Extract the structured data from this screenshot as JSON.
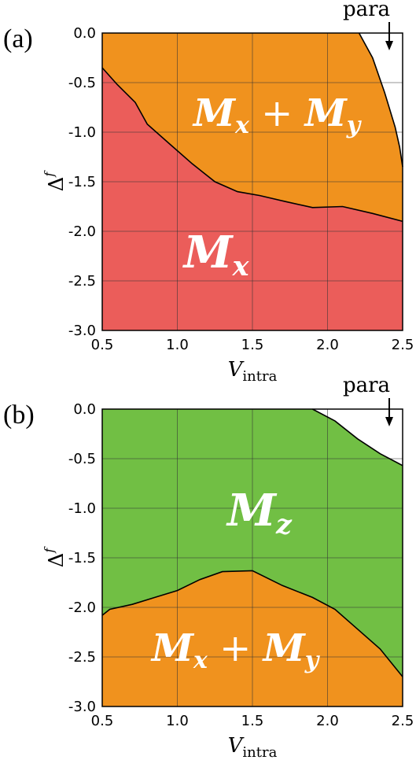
{
  "chart_data": [
    {
      "type": "area",
      "panel_label": "(a)",
      "xlabel": {
        "main": "V",
        "sub": "intra"
      },
      "ylabel": {
        "main": "Δ",
        "sup": "f"
      },
      "xlim": [
        0.5,
        2.5
      ],
      "ylim": [
        -3.0,
        0.0
      ],
      "xticks": [
        "0.5",
        "1.0",
        "1.5",
        "2.0",
        "2.5"
      ],
      "xtick_values": [
        0.5,
        1.0,
        1.5,
        2.0,
        2.5
      ],
      "yticks": [
        "0.0",
        "-0.5",
        "-1.0",
        "-1.5",
        "-2.0",
        "-2.5",
        "-3.0"
      ],
      "ytick_values": [
        0.0,
        -0.5,
        -1.0,
        -1.5,
        -2.0,
        -2.5,
        -3.0
      ],
      "grid": true,
      "annotation": "para",
      "colors": {
        "Mx": "#eb5d5a",
        "MxMy": "#f0921e",
        "para": "#ffffff"
      },
      "regions": [
        {
          "name": "Mx",
          "label": "M",
          "sub": "x",
          "color": "#eb5d5a"
        },
        {
          "name": "MxMy",
          "label": "M",
          "sub": "x",
          "label2": "M",
          "sub2": "y",
          "color": "#f0921e"
        },
        {
          "name": "para",
          "label": "",
          "color": "#ffffff"
        }
      ],
      "boundaries": {
        "Mx_upper": {
          "x": [
            0.5,
            0.6,
            0.72,
            0.8,
            0.95,
            1.1,
            1.25,
            1.4,
            1.55,
            1.72,
            1.9,
            2.1,
            2.3,
            2.5
          ],
          "y": [
            -0.35,
            -0.52,
            -0.7,
            -0.92,
            -1.12,
            -1.32,
            -1.5,
            -1.6,
            -1.64,
            -1.7,
            -1.76,
            -1.75,
            -1.82,
            -1.9
          ]
        },
        "para_lower": {
          "x": [
            2.21,
            2.3,
            2.38,
            2.45,
            2.48,
            2.5
          ],
          "y": [
            0.0,
            -0.25,
            -0.6,
            -0.95,
            -1.15,
            -1.35
          ]
        }
      }
    },
    {
      "type": "area",
      "panel_label": "(b)",
      "xlabel": {
        "main": "V",
        "sub": "intra"
      },
      "ylabel": {
        "main": "Δ",
        "sup": "f"
      },
      "xlim": [
        0.5,
        2.5
      ],
      "ylim": [
        -3.0,
        0.0
      ],
      "xticks": [
        "0.5",
        "1.0",
        "1.5",
        "2.0",
        "2.5"
      ],
      "xtick_values": [
        0.5,
        1.0,
        1.5,
        2.0,
        2.5
      ],
      "yticks": [
        "0.0",
        "-0.5",
        "-1.0",
        "-1.5",
        "-2.0",
        "-2.5",
        "-3.0"
      ],
      "ytick_values": [
        0.0,
        -0.5,
        -1.0,
        -1.5,
        -2.0,
        -2.5,
        -3.0
      ],
      "grid": true,
      "annotation": "para",
      "colors": {
        "Mz": "#71bf44",
        "MxMy": "#f0921e",
        "para": "#ffffff"
      },
      "regions": [
        {
          "name": "Mz",
          "label": "M",
          "sub": "z",
          "color": "#71bf44"
        },
        {
          "name": "MxMy",
          "label": "M",
          "sub": "x",
          "label2": "M",
          "sub2": "y",
          "color": "#f0921e"
        },
        {
          "name": "para",
          "label": "",
          "color": "#ffffff"
        }
      ],
      "boundaries": {
        "MxMy_upper": {
          "x": [
            0.5,
            0.55,
            0.7,
            0.85,
            1.0,
            1.15,
            1.3,
            1.5,
            1.7,
            1.9,
            2.05,
            2.2,
            2.35,
            2.5
          ],
          "y": [
            -2.08,
            -2.02,
            -1.97,
            -1.9,
            -1.83,
            -1.72,
            -1.64,
            -1.63,
            -1.78,
            -1.9,
            -2.02,
            -2.22,
            -2.42,
            -2.7
          ]
        },
        "para_lower": {
          "x": [
            1.9,
            2.05,
            2.2,
            2.35,
            2.5
          ],
          "y": [
            0.0,
            -0.12,
            -0.3,
            -0.45,
            -0.57
          ]
        }
      }
    }
  ]
}
